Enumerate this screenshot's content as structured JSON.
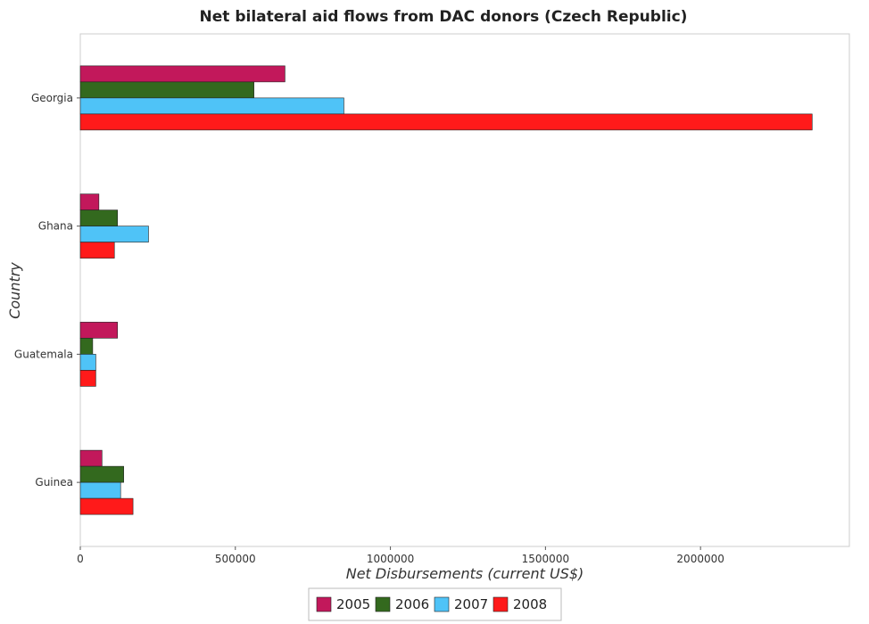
{
  "chart_data": {
    "type": "bar",
    "orientation": "horizontal",
    "title": "Net bilateral aid flows from DAC donors (Czech Republic)",
    "xlabel": "Net Disbursements (current US$)",
    "ylabel": "Country",
    "categories": [
      "Georgia",
      "Ghana",
      "Guatemala",
      "Guinea"
    ],
    "xlim": [
      0,
      2480000
    ],
    "xticks": [
      0,
      500000,
      1000000,
      1500000,
      2000000
    ],
    "xtick_labels": [
      "0",
      "500000",
      "1000000",
      "1500000",
      "2000000"
    ],
    "series": [
      {
        "name": "2005",
        "color": "#c2185b",
        "values": [
          660000,
          60000,
          120000,
          70000
        ]
      },
      {
        "name": "2006",
        "color": "#33691e",
        "values": [
          560000,
          120000,
          40000,
          140000
        ]
      },
      {
        "name": "2007",
        "color": "#4fc3f7",
        "values": [
          850000,
          220000,
          50000,
          130000
        ]
      },
      {
        "name": "2008",
        "color": "#ff1a1a",
        "values": [
          2360000,
          110000,
          50000,
          170000
        ]
      }
    ],
    "legend_position": "bottom-center",
    "grid": false
  }
}
